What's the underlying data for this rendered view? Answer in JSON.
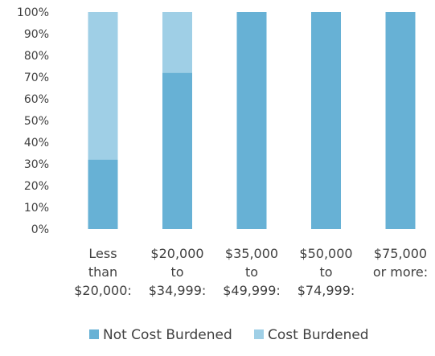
{
  "chart_data": {
    "type": "bar",
    "stacked": true,
    "title": "",
    "xlabel": "",
    "ylabel": "",
    "categories": [
      [
        "Less",
        "than",
        "$20,000:"
      ],
      [
        "$20,000",
        "to",
        "$34,999:"
      ],
      [
        "$35,000",
        "to",
        "$49,999:"
      ],
      [
        "$50,000",
        "to",
        "$74,999:"
      ],
      [
        "$75,000",
        "or more:"
      ]
    ],
    "series": [
      {
        "name": "Not Cost Burdened",
        "color": "#67b1d5",
        "values": [
          32,
          72,
          100,
          100,
          100
        ]
      },
      {
        "name": "Cost Burdened",
        "color": "#9fcfe6",
        "values": [
          68,
          28,
          0,
          0,
          0
        ]
      }
    ],
    "ylim": [
      0,
      100
    ],
    "yticks": [
      "0%",
      "10%",
      "20%",
      "30%",
      "40%",
      "50%",
      "60%",
      "70%",
      "80%",
      "90%",
      "100%"
    ],
    "grid": false,
    "legend_position": "bottom"
  }
}
